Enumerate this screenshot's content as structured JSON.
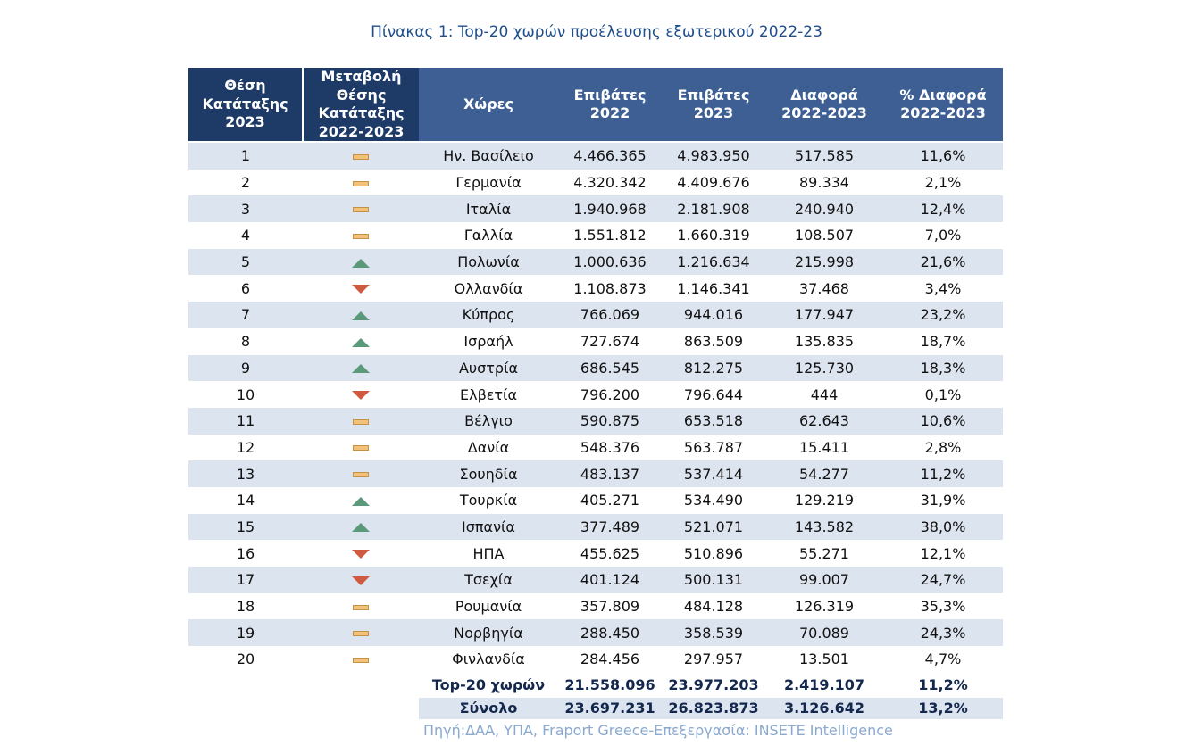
{
  "title": "Πίνακας 1: Top-20 χωρών προέλευσης εξωτερικού 2022-23",
  "headers": {
    "rank": [
      "Θέση",
      "Κατάταξης",
      "2023"
    ],
    "change": [
      "Μεταβολή",
      "Θέσης",
      "Κατάταξης",
      "2022-2023"
    ],
    "country": "Χώρες",
    "p2022": [
      "Επιβάτες",
      "2022"
    ],
    "p2023": [
      "Επιβάτες",
      "2023"
    ],
    "diff": [
      "Διαφορά",
      "2022-2023"
    ],
    "pct": [
      "% Διαφορά",
      "2022-2023"
    ]
  },
  "rows": [
    {
      "rank": "1",
      "change": "same",
      "country": "Ην. Βασίλειο",
      "p2022": "4.466.365",
      "p2023": "4.983.950",
      "diff": "517.585",
      "pct": "11,6%"
    },
    {
      "rank": "2",
      "change": "same",
      "country": "Γερμανία",
      "p2022": "4.320.342",
      "p2023": "4.409.676",
      "diff": "89.334",
      "pct": "2,1%"
    },
    {
      "rank": "3",
      "change": "same",
      "country": "Ιταλία",
      "p2022": "1.940.968",
      "p2023": "2.181.908",
      "diff": "240.940",
      "pct": "12,4%"
    },
    {
      "rank": "4",
      "change": "same",
      "country": "Γαλλία",
      "p2022": "1.551.812",
      "p2023": "1.660.319",
      "diff": "108.507",
      "pct": "7,0%"
    },
    {
      "rank": "5",
      "change": "up",
      "country": "Πολωνία",
      "p2022": "1.000.636",
      "p2023": "1.216.634",
      "diff": "215.998",
      "pct": "21,6%"
    },
    {
      "rank": "6",
      "change": "down",
      "country": "Ολλανδία",
      "p2022": "1.108.873",
      "p2023": "1.146.341",
      "diff": "37.468",
      "pct": "3,4%"
    },
    {
      "rank": "7",
      "change": "up",
      "country": "Κύπρος",
      "p2022": "766.069",
      "p2023": "944.016",
      "diff": "177.947",
      "pct": "23,2%"
    },
    {
      "rank": "8",
      "change": "up",
      "country": "Ισραήλ",
      "p2022": "727.674",
      "p2023": "863.509",
      "diff": "135.835",
      "pct": "18,7%"
    },
    {
      "rank": "9",
      "change": "up",
      "country": "Αυστρία",
      "p2022": "686.545",
      "p2023": "812.275",
      "diff": "125.730",
      "pct": "18,3%"
    },
    {
      "rank": "10",
      "change": "down",
      "country": "Ελβετία",
      "p2022": "796.200",
      "p2023": "796.644",
      "diff": "444",
      "pct": "0,1%"
    },
    {
      "rank": "11",
      "change": "same",
      "country": "Βέλγιο",
      "p2022": "590.875",
      "p2023": "653.518",
      "diff": "62.643",
      "pct": "10,6%"
    },
    {
      "rank": "12",
      "change": "same",
      "country": "Δανία",
      "p2022": "548.376",
      "p2023": "563.787",
      "diff": "15.411",
      "pct": "2,8%"
    },
    {
      "rank": "13",
      "change": "same",
      "country": "Σουηδία",
      "p2022": "483.137",
      "p2023": "537.414",
      "diff": "54.277",
      "pct": "11,2%"
    },
    {
      "rank": "14",
      "change": "up",
      "country": "Τουρκία",
      "p2022": "405.271",
      "p2023": "534.490",
      "diff": "129.219",
      "pct": "31,9%"
    },
    {
      "rank": "15",
      "change": "up",
      "country": "Ισπανία",
      "p2022": "377.489",
      "p2023": "521.071",
      "diff": "143.582",
      "pct": "38,0%"
    },
    {
      "rank": "16",
      "change": "down",
      "country": "ΗΠΑ",
      "p2022": "455.625",
      "p2023": "510.896",
      "diff": "55.271",
      "pct": "12,1%"
    },
    {
      "rank": "17",
      "change": "down",
      "country": "Τσεχία",
      "p2022": "401.124",
      "p2023": "500.131",
      "diff": "99.007",
      "pct": "24,7%"
    },
    {
      "rank": "18",
      "change": "same",
      "country": "Ρουμανία",
      "p2022": "357.809",
      "p2023": "484.128",
      "diff": "126.319",
      "pct": "35,3%"
    },
    {
      "rank": "19",
      "change": "same",
      "country": "Νορβηγία",
      "p2022": "288.450",
      "p2023": "358.539",
      "diff": "70.089",
      "pct": "24,3%"
    },
    {
      "rank": "20",
      "change": "same",
      "country": "Φινλανδία",
      "p2022": "284.456",
      "p2023": "297.957",
      "diff": "13.501",
      "pct": "4,7%"
    }
  ],
  "top20": {
    "label": "Top-20 χωρών",
    "p2022": "21.558.096",
    "p2023": "23.977.203",
    "diff": "2.419.107",
    "pct": "11,2%"
  },
  "total": {
    "label": "Σύνολο",
    "p2022": "23.697.231",
    "p2023": "26.823.873",
    "diff": "3.126.642",
    "pct": "13,2%"
  },
  "source": "Πηγή:ΔΑΑ, ΥΠΑ, Fraport Greece-Επεξεργασία: INSETE Intelligence",
  "colors": {
    "header_dark": "#1e3a66",
    "header": "#3d5f93",
    "stripe": "#dce4ef",
    "title": "#1f4e8c",
    "up": "#5a9a7a",
    "down": "#cf5a3f",
    "same": "#f2c27b"
  }
}
